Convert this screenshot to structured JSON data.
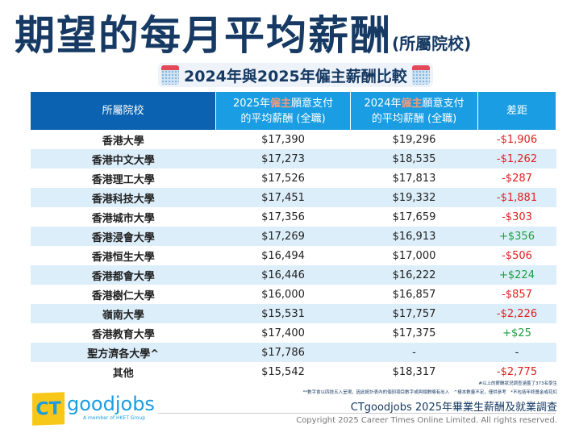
{
  "title": "期望的每月平均薪酬",
  "title_suffix": "(所屬院校)",
  "subtitle": "2024年與2025年僱主薪酬比較",
  "headers": {
    "school": "所屬院校",
    "y2025_a": "2025年",
    "y2024_a": "2024年",
    "emph": "僱主",
    "rest_a": "願意支付",
    "line2": "的平均薪酬 (全職)",
    "diff": "差距"
  },
  "rows": [
    {
      "school": "香港大學",
      "y2025": "$17,390",
      "y2024": "$19,296",
      "diff": "-$1,906"
    },
    {
      "school": "香港中文大學",
      "y2025": "$17,273",
      "y2024": "$18,535",
      "diff": "-$1,262"
    },
    {
      "school": "香港理工大學",
      "y2025": "$17,526",
      "y2024": "$17,813",
      "diff": "-$287"
    },
    {
      "school": "香港科技大學",
      "y2025": "$17,451",
      "y2024": "$19,332",
      "diff": "-$1,881"
    },
    {
      "school": "香港城市大學",
      "y2025": "$17,356",
      "y2024": "$17,659",
      "diff": "-$303"
    },
    {
      "school": "香港浸會大學",
      "y2025": "$17,269",
      "y2024": "$16,913",
      "diff": "+$356"
    },
    {
      "school": "香港恒生大學",
      "y2025": "$16,494",
      "y2024": "$17,000",
      "diff": "-$506"
    },
    {
      "school": "香港都會大學",
      "y2025": "$16,446",
      "y2024": "$16,222",
      "diff": "+$224"
    },
    {
      "school": "香港樹仁大學",
      "y2025": "$16,000",
      "y2024": "$16,857",
      "diff": "-$857"
    },
    {
      "school": "嶺南大學",
      "y2025": "$15,531",
      "y2024": "$17,757",
      "diff": "-$2,226"
    },
    {
      "school": "香港教育大學",
      "y2025": "$17,400",
      "y2024": "$17,375",
      "diff": "+$25"
    },
    {
      "school": "聖方濟各大學^",
      "y2025": "$17,786",
      "y2024": "-",
      "diff": "-"
    },
    {
      "school": "其他",
      "y2025": "$15,542",
      "y2024": "$18,317",
      "diff": "-$2,775"
    }
  ],
  "notes": [
    "#以上的薪酬狀況調查涵蓋了373名學生",
    "**數字會以四捨五入呈現，因此統計表內的個別項目數字或與總數略有出入　^樣本數量不足，僅供參考　*不包括年終獎金或花紅"
  ],
  "survey": "CTgoodjobs 2025年畢業生薪酬及就業調查",
  "copyright": "Copyright 2025 Career Times Online Limited. All rights reserved.",
  "logo": {
    "ct": "CT",
    "goodjobs": "goodjobs",
    "member": "A member of HKET Group"
  },
  "colors": {
    "negative": "#e02020",
    "positive": "#1aa040",
    "header_dark": "#0a62b0",
    "header_light": "#1a9de2",
    "stripe": "#dceefa"
  }
}
